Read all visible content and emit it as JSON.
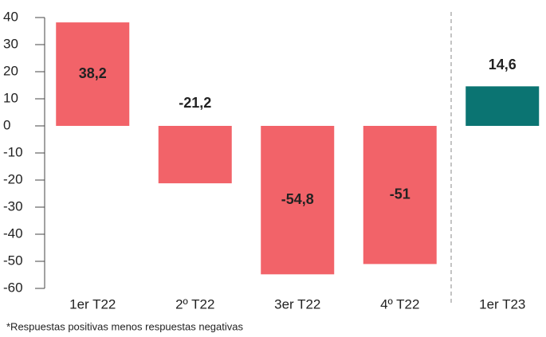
{
  "chart_data": {
    "type": "bar",
    "categories": [
      "1er T22",
      "2º T22",
      "3er T22",
      "4º T22",
      "1er T23"
    ],
    "values": [
      38.2,
      -21.2,
      -54.8,
      -51,
      14.6
    ],
    "value_labels": [
      "38,2",
      "-21,2",
      "-54,8",
      "-51",
      "14,6"
    ],
    "colors": [
      "#f26369",
      "#f26369",
      "#f26369",
      "#f26369",
      "#0b7472"
    ],
    "ylim": [
      -60,
      40
    ],
    "yticks": [
      40,
      30,
      20,
      10,
      0,
      -10,
      -20,
      -30,
      -40,
      -50,
      -60
    ],
    "footnote": "*Respuestas positivas menos respuestas negativas"
  }
}
